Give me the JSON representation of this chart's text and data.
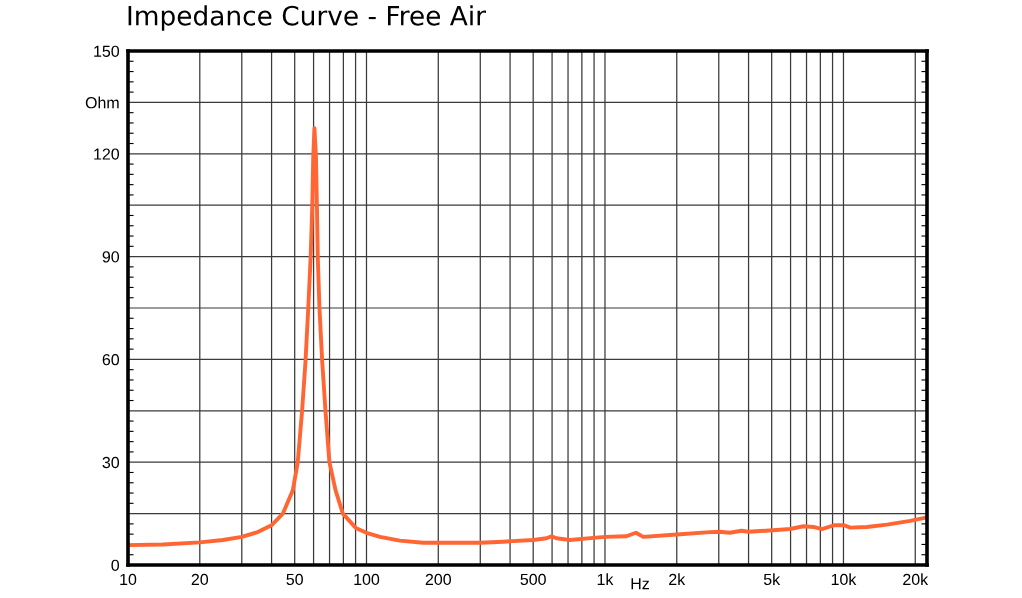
{
  "chart_data": {
    "type": "line",
    "title": "Impedance Curve - Free Air",
    "xlabel": "Hz",
    "log": "x",
    "xlim": [
      10,
      22400
    ],
    "ylim": [
      0,
      150
    ],
    "xticks": [
      10,
      20,
      {
        "value": 30,
        "label": null
      },
      {
        "value": 40,
        "label": null
      },
      50,
      {
        "value": 60,
        "label": null
      },
      {
        "value": 70,
        "label": null
      },
      {
        "value": 80,
        "label": null
      },
      {
        "value": 90,
        "label": null
      },
      100,
      200,
      {
        "value": 300,
        "label": null
      },
      {
        "value": 400,
        "label": null
      },
      500,
      {
        "value": 600,
        "label": null
      },
      {
        "value": 700,
        "label": null
      },
      {
        "value": 800,
        "label": null
      },
      {
        "value": 900,
        "label": null
      },
      {
        "value": 1000,
        "label": "1k"
      },
      {
        "value": 2000,
        "label": "2k"
      },
      {
        "value": 3000,
        "label": null
      },
      {
        "value": 4000,
        "label": null
      },
      {
        "value": 5000,
        "label": "5k"
      },
      {
        "value": 6000,
        "label": null
      },
      {
        "value": 7000,
        "label": null
      },
      {
        "value": 8000,
        "label": null
      },
      {
        "value": 9000,
        "label": null
      },
      {
        "value": 10000,
        "label": "10k"
      },
      {
        "value": 20000,
        "label": "20k"
      }
    ],
    "yticks": [
      0,
      {
        "value": 15,
        "label": null
      },
      30,
      {
        "value": 45,
        "label": null
      },
      60,
      {
        "value": 75,
        "label": null
      },
      90,
      {
        "value": 105,
        "label": null
      },
      120,
      {
        "value": 135,
        "label": "Ohm"
      },
      150
    ],
    "grid": true,
    "line_style": "solid",
    "series": [
      {
        "color": "#ff6633",
        "x": [
          10,
          14,
          20,
          25,
          30,
          35,
          40,
          44.6,
          49.1,
          51.5,
          53.7,
          55.5,
          57.0,
          58.3,
          59.2,
          59.8,
          60.5,
          61.4,
          62.0,
          62.5,
          63.5,
          65.2,
          67.3,
          69.9,
          74.2,
          79.6,
          90.6,
          100,
          114,
          138,
          173,
          200,
          300,
          374,
          500,
          569,
          597,
          626,
          713,
          893,
          1000,
          1230,
          1348,
          1447,
          2000,
          2754,
          3030,
          3335,
          3738,
          3990,
          5250,
          5975,
          6797,
          7489,
          8116,
          9136,
          10070,
          10680,
          12540,
          15210,
          19050,
          22400
        ],
        "values": [
          5.8,
          6.0,
          6.6,
          7.3,
          8.2,
          9.6,
          11.6,
          15,
          21.8,
          30,
          45,
          59.5,
          75,
          89.5,
          104,
          119,
          127.5,
          119,
          104,
          89.5,
          75,
          59.5,
          45,
          30,
          21.8,
          15,
          10.7,
          9.4,
          8.2,
          7.1,
          6.5,
          6.5,
          6.5,
          6.8,
          7.3,
          7.8,
          8.4,
          7.8,
          7.3,
          7.9,
          8.2,
          8.4,
          9.4,
          8.2,
          8.9,
          9.6,
          9.7,
          9.4,
          10.0,
          9.7,
          10.2,
          10.5,
          11.3,
          11.1,
          10.5,
          11.6,
          11.6,
          10.9,
          11.1,
          11.8,
          12.9,
          13.9
        ]
      }
    ]
  }
}
